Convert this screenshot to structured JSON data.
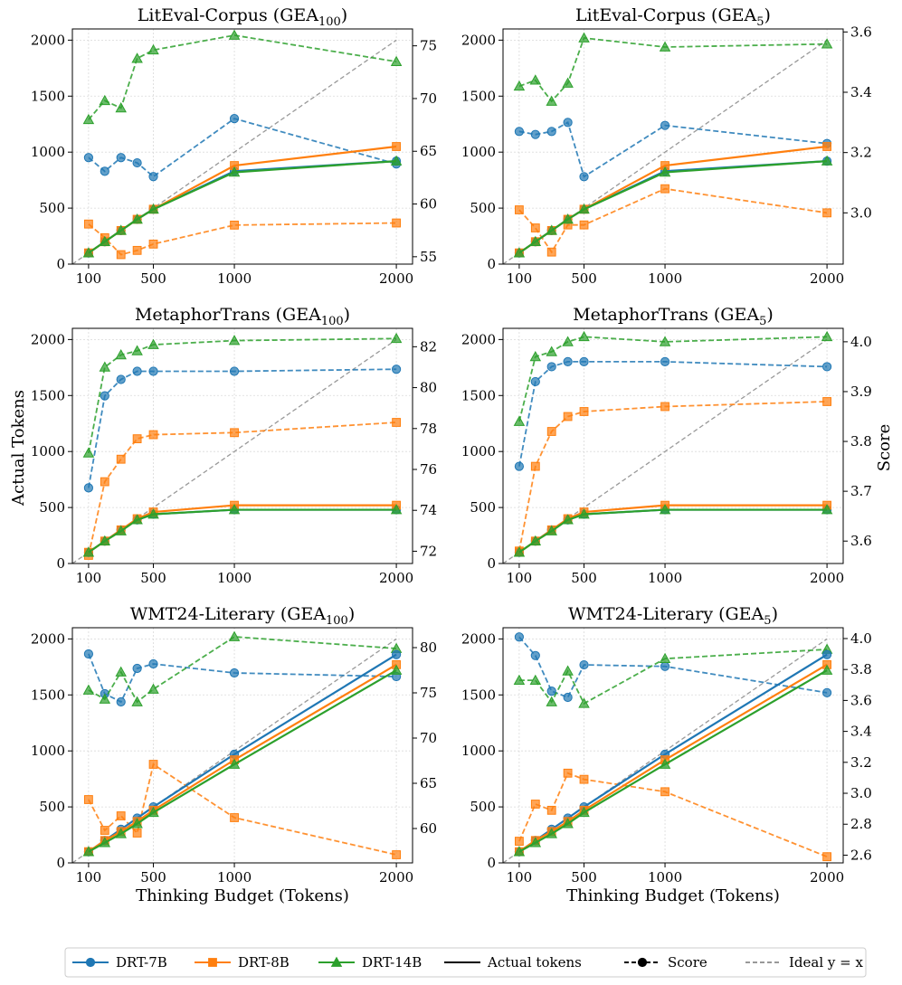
{
  "figure": {
    "y_label_left": "Actual Tokens",
    "y_label_right": "Score",
    "colors": {
      "DRT-7B": "#1f77b4",
      "DRT-8B": "#ff7f0e",
      "DRT-14B": "#2ca02c",
      "ideal": "#999999"
    },
    "legend": {
      "placement": "bottom-center",
      "entries": [
        {
          "label": "DRT-7B",
          "kind": "model",
          "marker": "circle",
          "color": "#1f77b4"
        },
        {
          "label": "DRT-8B",
          "kind": "model",
          "marker": "square",
          "color": "#ff7f0e"
        },
        {
          "label": "DRT-14B",
          "kind": "model",
          "marker": "triangle",
          "color": "#2ca02c"
        },
        {
          "label": "Actual tokens",
          "kind": "solid",
          "color": "#000000"
        },
        {
          "label": "Score",
          "kind": "dashed-marker",
          "color": "#000000"
        },
        {
          "label": "Ideal y = x",
          "kind": "ideal",
          "color": "#999999"
        }
      ]
    }
  },
  "chart_data": [
    {
      "type": "line",
      "title": "LitEval-Corpus (GEA",
      "title_sub": "100",
      "title_end": ")",
      "xlabel": "",
      "x": [
        100,
        200,
        300,
        400,
        500,
        1000,
        2000
      ],
      "x_ticks": [
        100,
        500,
        1000,
        2000
      ],
      "ylim_left": [
        0,
        2100
      ],
      "y_ticks_left": [
        0,
        500,
        1000,
        1500,
        2000
      ],
      "ylim_right": [
        54.3,
        76.6
      ],
      "y_ticks_right": [
        55,
        60,
        65,
        70,
        75
      ],
      "grid": true,
      "tokens": [
        {
          "name": "DRT-7B",
          "values": [
            100,
            200,
            300,
            400,
            490,
            830,
            920
          ]
        },
        {
          "name": "DRT-8B",
          "values": [
            100,
            200,
            300,
            400,
            490,
            880,
            1050
          ]
        },
        {
          "name": "DRT-14B",
          "values": [
            100,
            200,
            300,
            400,
            490,
            820,
            920
          ]
        }
      ],
      "scores": [
        {
          "name": "DRT-7B",
          "values": [
            64.4,
            63.1,
            64.4,
            63.9,
            62.6,
            68.1,
            63.8
          ]
        },
        {
          "name": "DRT-8B",
          "values": [
            58.1,
            56.8,
            55.2,
            55.6,
            56.2,
            58.0,
            58.2
          ]
        },
        {
          "name": "DRT-14B",
          "values": [
            68.0,
            69.8,
            69.1,
            73.8,
            74.6,
            76.0,
            73.5
          ]
        }
      ]
    },
    {
      "type": "line",
      "title": "LitEval-Corpus (GEA",
      "title_sub": "5",
      "title_end": ")",
      "xlabel": "",
      "x": [
        100,
        200,
        300,
        400,
        500,
        1000,
        2000
      ],
      "x_ticks": [
        100,
        500,
        1000,
        2000
      ],
      "ylim_left": [
        0,
        2100
      ],
      "y_ticks_left": [
        0,
        500,
        1000,
        1500,
        2000
      ],
      "ylim_right": [
        2.83,
        3.61
      ],
      "y_ticks_right": [
        3.0,
        3.2,
        3.4,
        3.6
      ],
      "right_tick_format": 1,
      "grid": true,
      "tokens": [
        {
          "name": "DRT-7B",
          "values": [
            100,
            200,
            300,
            400,
            490,
            830,
            920
          ]
        },
        {
          "name": "DRT-8B",
          "values": [
            100,
            200,
            300,
            400,
            490,
            880,
            1050
          ]
        },
        {
          "name": "DRT-14B",
          "values": [
            100,
            200,
            300,
            400,
            490,
            820,
            920
          ]
        }
      ],
      "scores": [
        {
          "name": "DRT-7B",
          "values": [
            3.27,
            3.26,
            3.27,
            3.3,
            3.12,
            3.29,
            3.23
          ]
        },
        {
          "name": "DRT-8B",
          "values": [
            3.01,
            2.95,
            2.87,
            2.96,
            2.96,
            3.08,
            3.0
          ]
        },
        {
          "name": "DRT-14B",
          "values": [
            3.42,
            3.44,
            3.37,
            3.43,
            3.58,
            3.55,
            3.56
          ]
        }
      ]
    },
    {
      "type": "line",
      "title": "MetaphorTrans (GEA",
      "title_sub": "100",
      "title_end": ")",
      "xlabel": "",
      "x": [
        100,
        200,
        300,
        400,
        500,
        1000,
        2000
      ],
      "x_ticks": [
        100,
        500,
        1000,
        2000
      ],
      "ylim_left": [
        0,
        2100
      ],
      "y_ticks_left": [
        0,
        500,
        1000,
        1500,
        2000
      ],
      "ylim_right": [
        71.4,
        82.9
      ],
      "y_ticks_right": [
        72,
        74,
        76,
        78,
        80,
        82
      ],
      "grid": true,
      "tokens": [
        {
          "name": "DRT-7B",
          "values": [
            100,
            200,
            300,
            390,
            440,
            480,
            480
          ]
        },
        {
          "name": "DRT-8B",
          "values": [
            100,
            200,
            300,
            400,
            460,
            520,
            520
          ]
        },
        {
          "name": "DRT-14B",
          "values": [
            100,
            200,
            290,
            390,
            440,
            480,
            480
          ]
        }
      ],
      "scores": [
        {
          "name": "DRT-7B",
          "values": [
            75.1,
            79.6,
            80.4,
            80.8,
            80.8,
            80.8,
            80.9
          ]
        },
        {
          "name": "DRT-8B",
          "values": [
            71.8,
            75.4,
            76.5,
            77.5,
            77.7,
            77.8,
            78.3
          ]
        },
        {
          "name": "DRT-14B",
          "values": [
            76.8,
            81.0,
            81.6,
            81.8,
            82.1,
            82.3,
            82.4
          ]
        }
      ]
    },
    {
      "type": "line",
      "title": "MetaphorTrans (GEA",
      "title_sub": "5",
      "title_end": ")",
      "xlabel": "",
      "x": [
        100,
        200,
        300,
        400,
        500,
        1000,
        2000
      ],
      "x_ticks": [
        100,
        500,
        1000,
        2000
      ],
      "ylim_left": [
        0,
        2100
      ],
      "y_ticks_left": [
        0,
        500,
        1000,
        1500,
        2000
      ],
      "ylim_right": [
        3.555,
        4.027
      ],
      "y_ticks_right": [
        3.6,
        3.7,
        3.8,
        3.9,
        4.0
      ],
      "right_tick_format": 1,
      "grid": true,
      "tokens": [
        {
          "name": "DRT-7B",
          "values": [
            100,
            200,
            300,
            390,
            440,
            480,
            480
          ]
        },
        {
          "name": "DRT-8B",
          "values": [
            100,
            200,
            300,
            400,
            460,
            520,
            520
          ]
        },
        {
          "name": "DRT-14B",
          "values": [
            100,
            200,
            290,
            390,
            440,
            480,
            480
          ]
        }
      ],
      "scores": [
        {
          "name": "DRT-7B",
          "values": [
            3.75,
            3.92,
            3.95,
            3.96,
            3.96,
            3.96,
            3.95
          ]
        },
        {
          "name": "DRT-8B",
          "values": [
            3.58,
            3.75,
            3.82,
            3.85,
            3.86,
            3.87,
            3.88
          ]
        },
        {
          "name": "DRT-14B",
          "values": [
            3.84,
            3.97,
            3.98,
            4.0,
            4.01,
            4.0,
            4.01
          ]
        }
      ]
    },
    {
      "type": "line",
      "title": "WMT24-Literary (GEA",
      "title_sub": "100",
      "title_end": ")",
      "xlabel": "Thinking Budget (Tokens)",
      "x": [
        100,
        200,
        300,
        400,
        500,
        1000,
        2000
      ],
      "x_ticks": [
        100,
        500,
        1000,
        2000
      ],
      "ylim_left": [
        0,
        2100
      ],
      "y_ticks_left": [
        0,
        500,
        1000,
        1500,
        2000
      ],
      "ylim_right": [
        56.2,
        82.2
      ],
      "y_ticks_right": [
        60,
        65,
        70,
        75,
        80
      ],
      "grid": true,
      "tokens": [
        {
          "name": "DRT-7B",
          "values": [
            100,
            200,
            300,
            400,
            500,
            970,
            1860
          ]
        },
        {
          "name": "DRT-8B",
          "values": [
            100,
            200,
            280,
            370,
            470,
            920,
            1770
          ]
        },
        {
          "name": "DRT-14B",
          "values": [
            100,
            180,
            260,
            350,
            450,
            880,
            1720
          ]
        }
      ],
      "scores": [
        {
          "name": "DRT-7B",
          "values": [
            79.3,
            74.9,
            74.0,
            77.7,
            78.2,
            77.2,
            76.8
          ]
        },
        {
          "name": "DRT-8B",
          "values": [
            63.2,
            59.8,
            61.4,
            59.5,
            67.1,
            61.2,
            57.1
          ]
        },
        {
          "name": "DRT-14B",
          "values": [
            75.3,
            74.3,
            77.3,
            74.0,
            75.4,
            81.2,
            79.9
          ]
        }
      ]
    },
    {
      "type": "line",
      "title": "WMT24-Literary (GEA",
      "title_sub": "5",
      "title_end": ")",
      "xlabel": "Thinking Budget (Tokens)",
      "x": [
        100,
        200,
        300,
        400,
        500,
        1000,
        2000
      ],
      "x_ticks": [
        100,
        500,
        1000,
        2000
      ],
      "ylim_left": [
        0,
        2100
      ],
      "y_ticks_left": [
        0,
        500,
        1000,
        1500,
        2000
      ],
      "ylim_right": [
        2.55,
        4.07
      ],
      "y_ticks_right": [
        2.6,
        2.8,
        3.0,
        3.2,
        3.4,
        3.6,
        3.8,
        4.0
      ],
      "right_tick_format": 1,
      "grid": true,
      "tokens": [
        {
          "name": "DRT-7B",
          "values": [
            100,
            200,
            300,
            400,
            500,
            970,
            1860
          ]
        },
        {
          "name": "DRT-8B",
          "values": [
            100,
            200,
            280,
            370,
            470,
            920,
            1770
          ]
        },
        {
          "name": "DRT-14B",
          "values": [
            100,
            180,
            260,
            350,
            450,
            880,
            1720
          ]
        }
      ],
      "scores": [
        {
          "name": "DRT-7B",
          "values": [
            4.01,
            3.89,
            3.66,
            3.62,
            3.83,
            3.82,
            3.65
          ]
        },
        {
          "name": "DRT-8B",
          "values": [
            2.69,
            2.93,
            2.89,
            3.13,
            3.09,
            3.01,
            2.59
          ]
        },
        {
          "name": "DRT-14B",
          "values": [
            3.73,
            3.73,
            3.59,
            3.79,
            3.58,
            3.87,
            3.93
          ]
        }
      ]
    }
  ]
}
